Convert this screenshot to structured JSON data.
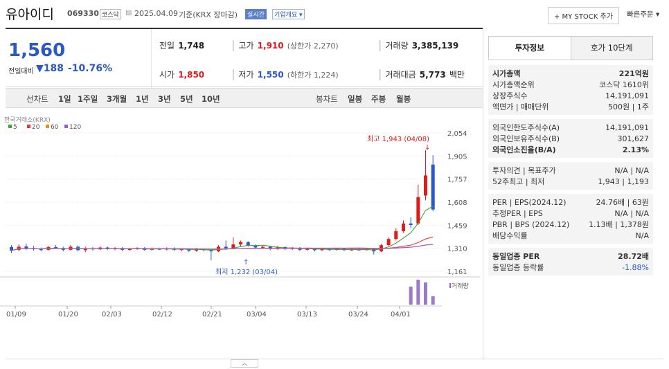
{
  "header": {
    "name": "유아이디",
    "code": "069330",
    "market_badge": "코스닥",
    "date": "2025.04.09",
    "basis": "기준(KRX 장마감)",
    "realtime_label": "실시간",
    "company_overview_label": "기업개요",
    "mystock_button": "+ MY STOCK 추가",
    "quick_order": "빠른주문"
  },
  "price": {
    "current": "1,560",
    "change_label": "전일대비",
    "change_value": "188",
    "change_pct": "-10.76%",
    "prev_label": "전일",
    "prev": "1,748",
    "open_label": "시가",
    "open": "1,850",
    "high_label": "고가",
    "high": "1,910",
    "upper_limit": "(상한가 2,270)",
    "low_label": "저가",
    "low": "1,550",
    "lower_limit": "(하한가 1,224)",
    "volume_label": "거래량",
    "volume": "3,385,139",
    "amount_label": "거래대금",
    "amount": "5,773",
    "amount_unit": "백만"
  },
  "periods": {
    "line_chart": "선차트",
    "items": [
      "1일",
      "1주일",
      "3개월",
      "1년",
      "3년",
      "5년",
      "10년"
    ],
    "candle_chart": "봉차트",
    "candle_items": [
      "일봉",
      "주봉",
      "월봉"
    ]
  },
  "chart_data": {
    "type": "candlestick",
    "source": "한국거래소(KRX)",
    "legend": [
      "5",
      "20",
      "60",
      "120"
    ],
    "legend_colors": [
      "#3aa63a",
      "#e53935",
      "#f08c1f",
      "#9c5bd0"
    ],
    "y_ticks": [
      "2,054",
      "1,905",
      "1,757",
      "1,608",
      "1,459",
      "1,310",
      "1,161"
    ],
    "ylim": [
      1161,
      2054
    ],
    "x_ticks": [
      "01/09",
      "01/20",
      "02/03",
      "02/12",
      "02/21",
      "03/04",
      "03/13",
      "03/24",
      "04/01"
    ],
    "high_annotation": "최고 1,943 (04/08)",
    "low_annotation": "최저 1,232 (03/04)",
    "volume_label": "거래량",
    "candles": [
      {
        "o": 1318,
        "c": 1295,
        "h": 1330,
        "l": 1280
      },
      {
        "o": 1300,
        "c": 1320,
        "h": 1335,
        "l": 1290
      },
      {
        "o": 1322,
        "c": 1310,
        "h": 1340,
        "l": 1300
      },
      {
        "o": 1312,
        "c": 1305,
        "h": 1325,
        "l": 1295
      },
      {
        "o": 1305,
        "c": 1300,
        "h": 1315,
        "l": 1290
      },
      {
        "o": 1300,
        "c": 1318,
        "h": 1325,
        "l": 1295
      },
      {
        "o": 1318,
        "c": 1312,
        "h": 1330,
        "l": 1305
      },
      {
        "o": 1312,
        "c": 1300,
        "h": 1320,
        "l": 1290
      },
      {
        "o": 1300,
        "c": 1320,
        "h": 1330,
        "l": 1295
      },
      {
        "o": 1320,
        "c": 1298,
        "h": 1328,
        "l": 1290
      },
      {
        "o": 1298,
        "c": 1310,
        "h": 1320,
        "l": 1285
      },
      {
        "o": 1310,
        "c": 1303,
        "h": 1318,
        "l": 1295
      },
      {
        "o": 1303,
        "c": 1315,
        "h": 1322,
        "l": 1298
      },
      {
        "o": 1315,
        "c": 1305,
        "h": 1320,
        "l": 1300
      },
      {
        "o": 1305,
        "c": 1312,
        "h": 1318,
        "l": 1298
      },
      {
        "o": 1312,
        "c": 1300,
        "h": 1318,
        "l": 1292
      },
      {
        "o": 1300,
        "c": 1306,
        "h": 1312,
        "l": 1295
      },
      {
        "o": 1306,
        "c": 1312,
        "h": 1318,
        "l": 1300
      },
      {
        "o": 1312,
        "c": 1300,
        "h": 1318,
        "l": 1295
      },
      {
        "o": 1300,
        "c": 1308,
        "h": 1315,
        "l": 1296
      },
      {
        "o": 1308,
        "c": 1302,
        "h": 1314,
        "l": 1298
      },
      {
        "o": 1302,
        "c": 1310,
        "h": 1316,
        "l": 1296
      },
      {
        "o": 1310,
        "c": 1300,
        "h": 1316,
        "l": 1294
      },
      {
        "o": 1300,
        "c": 1305,
        "h": 1310,
        "l": 1290
      },
      {
        "o": 1305,
        "c": 1295,
        "h": 1310,
        "l": 1285
      },
      {
        "o": 1295,
        "c": 1305,
        "h": 1312,
        "l": 1288
      },
      {
        "o": 1305,
        "c": 1298,
        "h": 1310,
        "l": 1290
      },
      {
        "o": 1298,
        "c": 1290,
        "h": 1305,
        "l": 1232
      },
      {
        "o": 1290,
        "c": 1320,
        "h": 1330,
        "l": 1285
      },
      {
        "o": 1320,
        "c": 1310,
        "h": 1360,
        "l": 1300
      },
      {
        "o": 1310,
        "c": 1335,
        "h": 1380,
        "l": 1305
      },
      {
        "o": 1335,
        "c": 1350,
        "h": 1360,
        "l": 1320
      },
      {
        "o": 1350,
        "c": 1328,
        "h": 1355,
        "l": 1320
      },
      {
        "o": 1328,
        "c": 1315,
        "h": 1335,
        "l": 1305
      },
      {
        "o": 1315,
        "c": 1320,
        "h": 1330,
        "l": 1305
      },
      {
        "o": 1320,
        "c": 1305,
        "h": 1325,
        "l": 1298
      },
      {
        "o": 1305,
        "c": 1318,
        "h": 1325,
        "l": 1300
      },
      {
        "o": 1318,
        "c": 1305,
        "h": 1322,
        "l": 1298
      },
      {
        "o": 1305,
        "c": 1312,
        "h": 1318,
        "l": 1300
      },
      {
        "o": 1312,
        "c": 1300,
        "h": 1318,
        "l": 1292
      },
      {
        "o": 1300,
        "c": 1308,
        "h": 1314,
        "l": 1296
      },
      {
        "o": 1308,
        "c": 1298,
        "h": 1312,
        "l": 1290
      },
      {
        "o": 1298,
        "c": 1305,
        "h": 1312,
        "l": 1292
      },
      {
        "o": 1305,
        "c": 1300,
        "h": 1310,
        "l": 1294
      },
      {
        "o": 1300,
        "c": 1306,
        "h": 1312,
        "l": 1295
      },
      {
        "o": 1306,
        "c": 1298,
        "h": 1310,
        "l": 1292
      },
      {
        "o": 1298,
        "c": 1303,
        "h": 1310,
        "l": 1294
      },
      {
        "o": 1303,
        "c": 1300,
        "h": 1308,
        "l": 1295
      },
      {
        "o": 1300,
        "c": 1305,
        "h": 1310,
        "l": 1294
      },
      {
        "o": 1305,
        "c": 1290,
        "h": 1310,
        "l": 1270
      },
      {
        "o": 1290,
        "c": 1330,
        "h": 1340,
        "l": 1285
      },
      {
        "o": 1330,
        "c": 1370,
        "h": 1380,
        "l": 1325
      },
      {
        "o": 1370,
        "c": 1420,
        "h": 1440,
        "l": 1360
      },
      {
        "o": 1420,
        "c": 1470,
        "h": 1490,
        "l": 1410
      },
      {
        "o": 1470,
        "c": 1460,
        "h": 1510,
        "l": 1440
      },
      {
        "o": 1470,
        "c": 1640,
        "h": 1720,
        "l": 1460
      },
      {
        "o": 1650,
        "c": 1780,
        "h": 1943,
        "l": 1620
      },
      {
        "o": 1850,
        "c": 1560,
        "h": 1910,
        "l": 1550
      }
    ],
    "volumes": [
      0,
      0,
      0,
      0,
      0,
      0,
      0,
      0,
      0,
      0,
      0,
      0,
      0,
      0,
      0,
      0,
      0,
      0,
      0,
      0,
      0,
      0,
      0,
      0,
      0,
      0,
      0,
      0,
      0,
      0,
      0,
      0,
      0,
      0,
      0,
      0,
      0,
      0,
      0,
      0,
      0,
      0,
      0,
      0,
      0,
      0,
      0,
      0,
      0,
      0,
      0,
      0,
      0,
      0,
      1.3,
      1.8,
      1.6,
      0.6
    ]
  },
  "invest": {
    "tab_active": "투자정보",
    "tab_other": "호가 10단계",
    "g1": [
      {
        "k": "시가총액",
        "v": "221억원"
      },
      {
        "k": "시가총액순위",
        "v": "코스닥 1610위"
      },
      {
        "k": "상장주식수",
        "v": "14,191,091"
      },
      {
        "k": "액면가 | 매매단위",
        "v": "500원 | 1주"
      }
    ],
    "g2": [
      {
        "k": "외국인한도주식수(A)",
        "v": "14,191,091"
      },
      {
        "k": "외국인보유주식수(B)",
        "v": "301,627"
      },
      {
        "k": "외국인소진율(B/A)",
        "v": "2.13%"
      }
    ],
    "g3": [
      {
        "k": "투자의견 | 목표주가",
        "v": "N/A | N/A"
      },
      {
        "k": "52주최고 | 최저",
        "v": "1,943 | 1,193"
      }
    ],
    "g4": [
      {
        "k": "PER | EPS(2024.12)",
        "v": "24.76배 | 63원"
      },
      {
        "k": "추정PER | EPS",
        "v": "N/A | N/A"
      },
      {
        "k": "PBR | BPS (2024.12)",
        "v": "1.13배 | 1,378원"
      },
      {
        "k": "배당수익률",
        "v": "N/A"
      }
    ],
    "g5": [
      {
        "k": "동일업종 PER",
        "v": "28.72배"
      },
      {
        "k": "동일업종 등락률",
        "v": "-1.88%"
      }
    ]
  }
}
